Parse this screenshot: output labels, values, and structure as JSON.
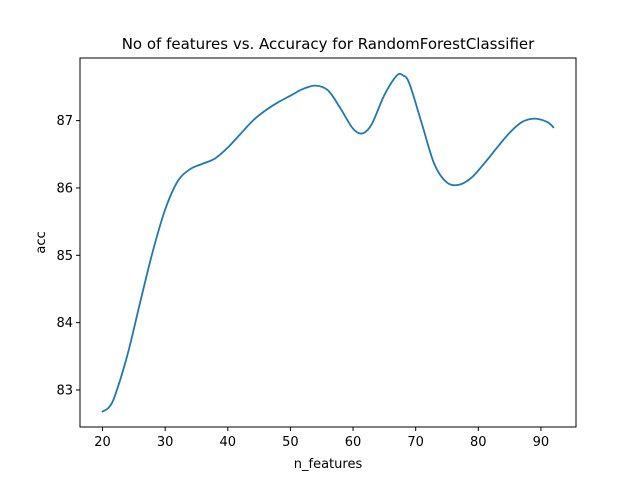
{
  "chart_data": {
    "type": "line",
    "title": "No of features vs. Accuracy for RandomForestClassifier",
    "xlabel": "n_features",
    "ylabel": "acc",
    "xlim": [
      16.4,
      95.6
    ],
    "ylim": [
      82.45,
      87.93
    ],
    "xticks": [
      20,
      30,
      40,
      50,
      60,
      70,
      80,
      90
    ],
    "yticks": [
      83,
      84,
      85,
      86,
      87
    ],
    "grid": false,
    "legend": "none",
    "series": [
      {
        "color": "#1f77b4",
        "x": [
          20,
          21,
          22,
          24,
          26,
          28,
          30,
          32,
          34,
          36,
          38,
          40,
          42,
          44,
          46,
          48,
          50,
          52,
          54,
          56,
          58,
          60,
          61.5,
          63,
          65,
          67,
          68,
          69,
          71,
          73,
          75,
          77,
          79,
          81,
          83,
          85,
          87,
          89,
          91,
          92
        ],
        "y": [
          82.68,
          82.74,
          82.92,
          83.53,
          84.3,
          85.05,
          85.68,
          86.1,
          86.28,
          86.36,
          86.44,
          86.6,
          86.8,
          87.0,
          87.15,
          87.27,
          87.37,
          87.47,
          87.52,
          87.45,
          87.18,
          86.88,
          86.81,
          86.95,
          87.38,
          87.67,
          87.67,
          87.55,
          86.95,
          86.35,
          86.08,
          86.05,
          86.16,
          86.37,
          86.6,
          86.82,
          86.98,
          87.03,
          86.98,
          86.9
        ]
      }
    ]
  }
}
